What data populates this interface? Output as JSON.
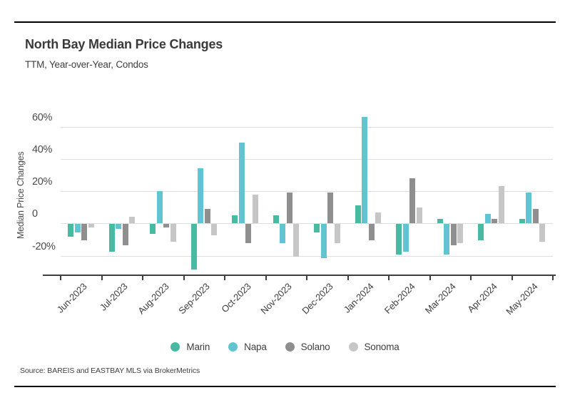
{
  "header": {
    "title": "North Bay Median Price Changes",
    "subtitle": "TTM, Year-over-Year, Condos"
  },
  "chart_data": {
    "type": "bar",
    "title": "North Bay Median Price Changes",
    "subtitle": "TTM, Year-over-Year, Condos",
    "ylabel": "Median Price Changes",
    "xlabel": "",
    "categories": [
      "Jun-2023",
      "Jul-2023",
      "Aug-2023",
      "Sep-2023",
      "Oct-2023",
      "Nov-2023",
      "Dec-2023",
      "Jan-2024",
      "Feb-2024",
      "Mar-2024",
      "Apr-2024",
      "May-2024"
    ],
    "series": [
      {
        "name": "Marin",
        "color": "#49BAA2",
        "values": [
          -8,
          -17,
          -6,
          -28,
          5,
          5,
          -5,
          11,
          -19,
          3,
          -10,
          3
        ]
      },
      {
        "name": "Napa",
        "color": "#62C4D0",
        "values": [
          -5,
          -3,
          20,
          34,
          50,
          -12,
          -21,
          66,
          -17,
          -19,
          6,
          19
        ]
      },
      {
        "name": "Solano",
        "color": "#8F8F8F",
        "values": [
          -10,
          -13,
          -2,
          9,
          -12,
          19,
          19,
          -10,
          28,
          -13,
          3,
          9
        ]
      },
      {
        "name": "Sonoma",
        "color": "#C6C6C6",
        "values": [
          -2,
          4,
          -11,
          -7,
          18,
          -20,
          -12,
          7,
          10,
          -12,
          23,
          -11
        ]
      }
    ],
    "yticks": [
      {
        "label": "60%",
        "value": 60
      },
      {
        "label": "40%",
        "value": 40
      },
      {
        "label": "20%",
        "value": 20
      },
      {
        "label": "0",
        "value": 0
      },
      {
        "label": "-20%",
        "value": -20
      }
    ],
    "ylim": [
      -33,
      70
    ],
    "grid": true,
    "legend_position": "bottom"
  },
  "footer": {
    "source": "Source:  BAREIS and EASTBAY MLS via BrokerMetrics"
  }
}
